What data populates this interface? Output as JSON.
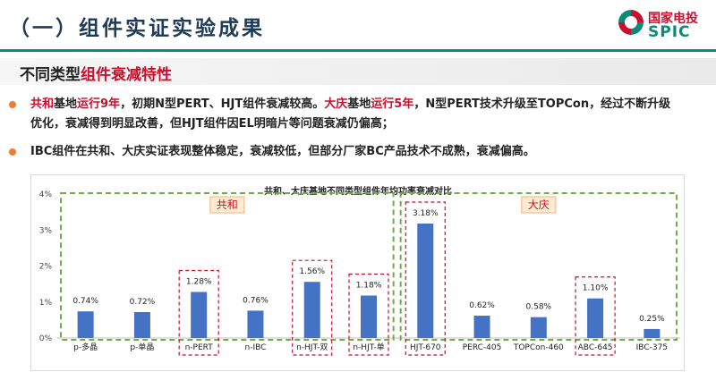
{
  "header": {
    "title": "（一）组件实证实验成果",
    "logo_cn": "国家电投",
    "logo_en": "SPIC"
  },
  "subheading": {
    "prefix": "不同类型",
    "highlight": "组件衰减特性"
  },
  "bullets": [
    {
      "runs": [
        {
          "text": "共和",
          "red": true
        },
        {
          "text": "基地",
          "red": false
        },
        {
          "text": "运行9年",
          "red": true
        },
        {
          "text": "，初期N型PERT、HJT组件衰减较高。",
          "red": false
        },
        {
          "text": "大庆",
          "red": true
        },
        {
          "text": "基地",
          "red": false
        },
        {
          "text": "运行5年",
          "red": true
        },
        {
          "text": "，N型PERT技术升级至TOPCon，经过不断升级",
          "red": false
        }
      ],
      "line2": "优化，衰减得到明显改善，但HJT组件因EL明暗片等问题衰减仍偏高；"
    },
    {
      "runs": [
        {
          "text": "IBC组件在共和、大庆实证表现整体稳定，衰减较低，但部分厂家BC产品技术不成熟，衰减偏高。",
          "red": false
        }
      ]
    }
  ],
  "colors": {
    "bar": "#4472c4",
    "group_box": "#70ad47",
    "highlight_box": "#c8102e",
    "label_box_fill": "#fdeccf",
    "label_box_border": "#f4b183",
    "label_text": "#c8102e"
  },
  "chart_data": {
    "type": "bar",
    "title": "共和、大庆基地不同类型组件年均功率衰减对比",
    "categories": [
      "p-多晶",
      "p-单晶",
      "n-PERT",
      "n-IBC",
      "n-HJT-双",
      "n-HJT-单",
      "HJT-670",
      "PERC-405",
      "TOPCon-460",
      "ABC-645",
      "IBC-375"
    ],
    "values": [
      0.74,
      0.72,
      1.28,
      0.76,
      1.56,
      1.18,
      3.18,
      0.62,
      0.58,
      1.1,
      0.25
    ],
    "value_labels": [
      "0.74%",
      "0.72%",
      "1.28%",
      "0.76%",
      "1.56%",
      "1.18%",
      "3.18%",
      "0.62%",
      "0.58%",
      "1.10%",
      "0.25%"
    ],
    "ylim": [
      0,
      4
    ],
    "yticks": [
      "0%",
      "1%",
      "2%",
      "3%",
      "4%"
    ],
    "highlighted": [
      "n-PERT",
      "n-HJT-双",
      "n-HJT-单",
      "HJT-670",
      "ABC-645"
    ],
    "groups": [
      {
        "name": "共和",
        "categories": [
          "p-多晶",
          "p-单晶",
          "n-PERT",
          "n-IBC",
          "n-HJT-双",
          "n-HJT-单"
        ]
      },
      {
        "name": "大庆",
        "categories": [
          "HJT-670",
          "PERC-405",
          "TOPCon-460",
          "ABC-645",
          "IBC-375"
        ]
      }
    ],
    "grid": false,
    "legend": "none"
  }
}
